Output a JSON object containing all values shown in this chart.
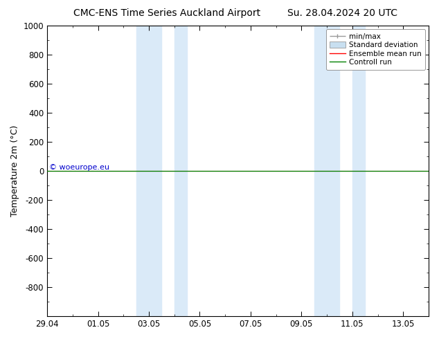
{
  "title_left": "CMC-ENS Time Series Auckland Airport",
  "title_right": "Su. 28.04.2024 20 UTC",
  "ylabel": "Temperature 2m (°C)",
  "watermark": "© woeurope.eu",
  "ylim_top": -1000,
  "ylim_bottom": 1000,
  "yticks": [
    -800,
    -600,
    -400,
    -200,
    0,
    200,
    400,
    600,
    800,
    1000
  ],
  "xtick_labels": [
    "29.04",
    "01.05",
    "03.05",
    "05.05",
    "07.05",
    "09.05",
    "11.05",
    "13.05"
  ],
  "xtick_positions": [
    0,
    2,
    4,
    6,
    8,
    10,
    12,
    14
  ],
  "xlim": [
    0,
    15
  ],
  "shaded_regions": [
    [
      3.5,
      4.5
    ],
    [
      5.0,
      5.5
    ],
    [
      10.5,
      11.5
    ],
    [
      12.0,
      12.5
    ]
  ],
  "control_run_y": 0,
  "ensemble_mean_y": 0,
  "line_color_control": "#008000",
  "line_color_ensemble": "#ff0000",
  "shaded_color": "#daeaf8",
  "background_color": "#ffffff",
  "legend_minmax_color": "#999999",
  "legend_std_color": "#c8dff0",
  "watermark_color": "#0000cc",
  "title_fontsize": 10,
  "label_fontsize": 9,
  "tick_fontsize": 8.5
}
